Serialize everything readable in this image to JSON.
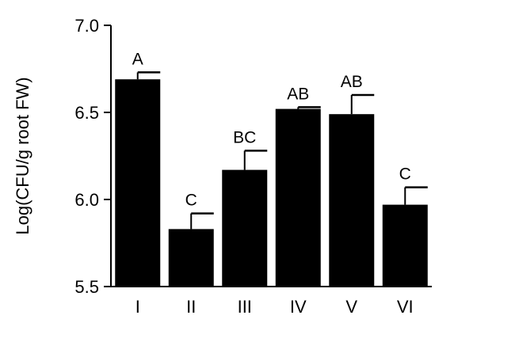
{
  "chart_data": {
    "type": "bar",
    "title": "",
    "xlabel": "",
    "ylabel": "Log(CFU/g root FW)",
    "ylim": [
      5.5,
      7.0
    ],
    "yticks": [
      "5.5",
      "6.0",
      "6.5",
      "7.0"
    ],
    "categories": [
      "I",
      "II",
      "III",
      "IV",
      "V",
      "VI"
    ],
    "values": [
      6.69,
      5.83,
      6.17,
      6.52,
      6.49,
      5.97
    ],
    "errors": [
      0.04,
      0.09,
      0.11,
      0.01,
      0.11,
      0.1
    ],
    "significance": [
      "A",
      "C",
      "BC",
      "AB",
      "AB",
      "C"
    ],
    "grid": false,
    "legend": "none",
    "bar_color": "#000000"
  }
}
